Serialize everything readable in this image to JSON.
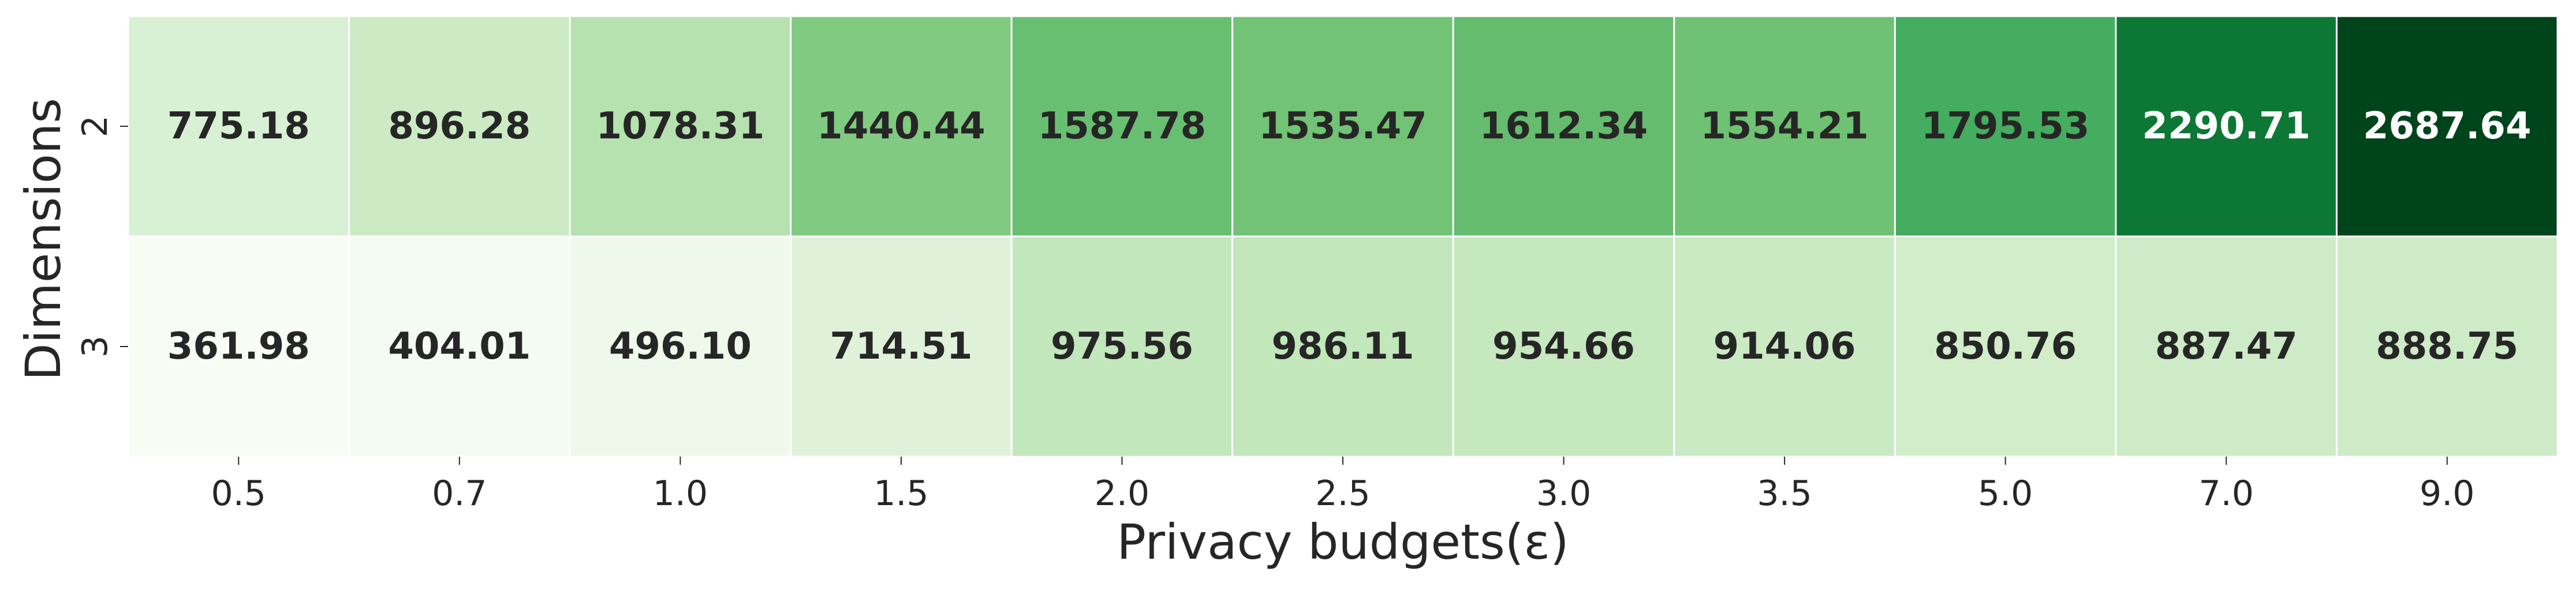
{
  "chart_data": {
    "type": "heatmap",
    "title": "",
    "xlabel": "Privacy budgets(ε)",
    "ylabel": "Dimensions",
    "x": [
      "0.5",
      "0.7",
      "1.0",
      "1.5",
      "2.0",
      "2.5",
      "3.0",
      "3.5",
      "5.0",
      "7.0",
      "9.0"
    ],
    "y": [
      "2",
      "3"
    ],
    "values": [
      [
        775.18,
        896.28,
        1078.31,
        1440.44,
        1587.78,
        1535.47,
        1612.34,
        1554.21,
        1795.53,
        2290.71,
        2687.64
      ],
      [
        361.98,
        404.01,
        496.1,
        714.51,
        975.56,
        986.11,
        954.66,
        914.06,
        850.76,
        887.47,
        888.75
      ]
    ],
    "value_format": "2 decimals",
    "colormap": "Greens",
    "color_range": [
      361.98,
      2687.64
    ],
    "colorbar": false,
    "annotations": true
  },
  "colors": {
    "text_dark": "#262626",
    "text_light": "#ffffff",
    "grid_line": "#ffffff"
  }
}
